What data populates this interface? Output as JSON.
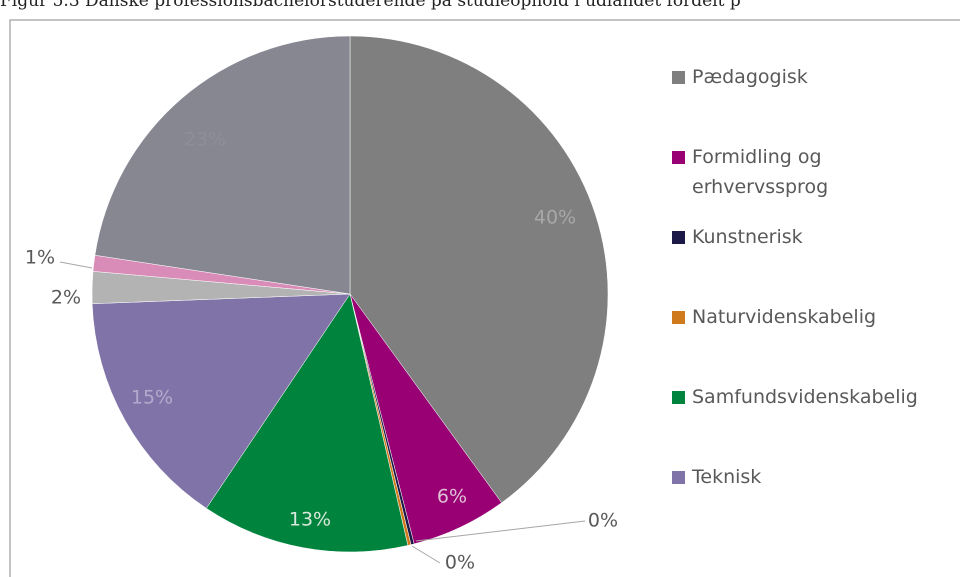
{
  "chart_data": {
    "type": "pie",
    "title": "Figur 5.3 Danske professionsbachelorstuderende på studieophold i udlandet fordelt p",
    "categories": [
      "Pædagogisk",
      "Formidling og erhvervssprog",
      "Kunstnerisk",
      "Naturvidenskabelig",
      "Samfundsvidenskabelig",
      "Teknisk",
      null,
      null,
      null
    ],
    "values": [
      40,
      6,
      0.2,
      0.2,
      13,
      15,
      2,
      1,
      22.6
    ],
    "value_labels": [
      "40%",
      "6%",
      "0%",
      "0%",
      "13%",
      "15%",
      "2%",
      "1%",
      "23%"
    ],
    "colors": [
      "#7f7f7f",
      "#990073",
      "#1c1848",
      "#d07a1e",
      "#00843d",
      "#8073a8",
      "#b3b3b3",
      "#d98cb8",
      "#878792"
    ],
    "legend": "right"
  }
}
